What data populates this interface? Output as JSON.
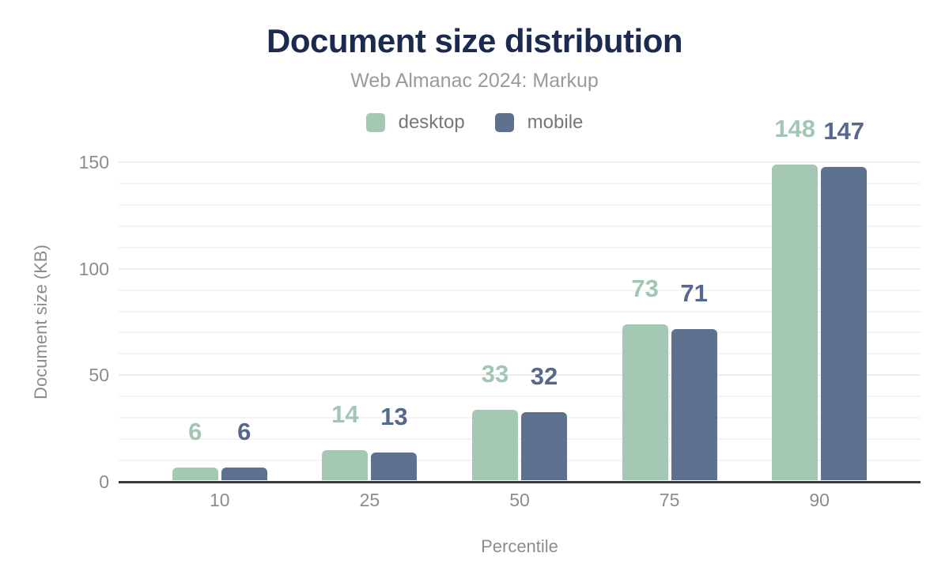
{
  "chart_data": {
    "type": "bar",
    "title": "Document size distribution",
    "subtitle": "Web Almanac 2024: Markup",
    "xlabel": "Percentile",
    "ylabel": "Document size (KB)",
    "categories": [
      "10",
      "25",
      "50",
      "75",
      "90"
    ],
    "series": [
      {
        "name": "desktop",
        "color": "#a5c8b5",
        "label_color": "#a2c6b3",
        "values": [
          6,
          14,
          33,
          73,
          148
        ]
      },
      {
        "name": "mobile",
        "color": "#5e718e",
        "label_color": "#55698c",
        "values": [
          6,
          13,
          32,
          71,
          147
        ]
      }
    ],
    "ylim": [
      0,
      150
    ],
    "yticks": [
      "0",
      "50",
      "100",
      "150"
    ],
    "grid": {
      "minor_step": 10,
      "major_step": 50,
      "on": true
    },
    "legend_position": "top",
    "colors": {
      "title": "#1b2a4e",
      "subtitle_text": "#9a9a9a",
      "legend_text": "#75787b",
      "axis_text": "#8c8c8c",
      "axis_line": "#3a3a3a",
      "gridline_minor": "#f4f4f4",
      "gridline_major": "#ededed",
      "background": "#ffffff"
    }
  }
}
